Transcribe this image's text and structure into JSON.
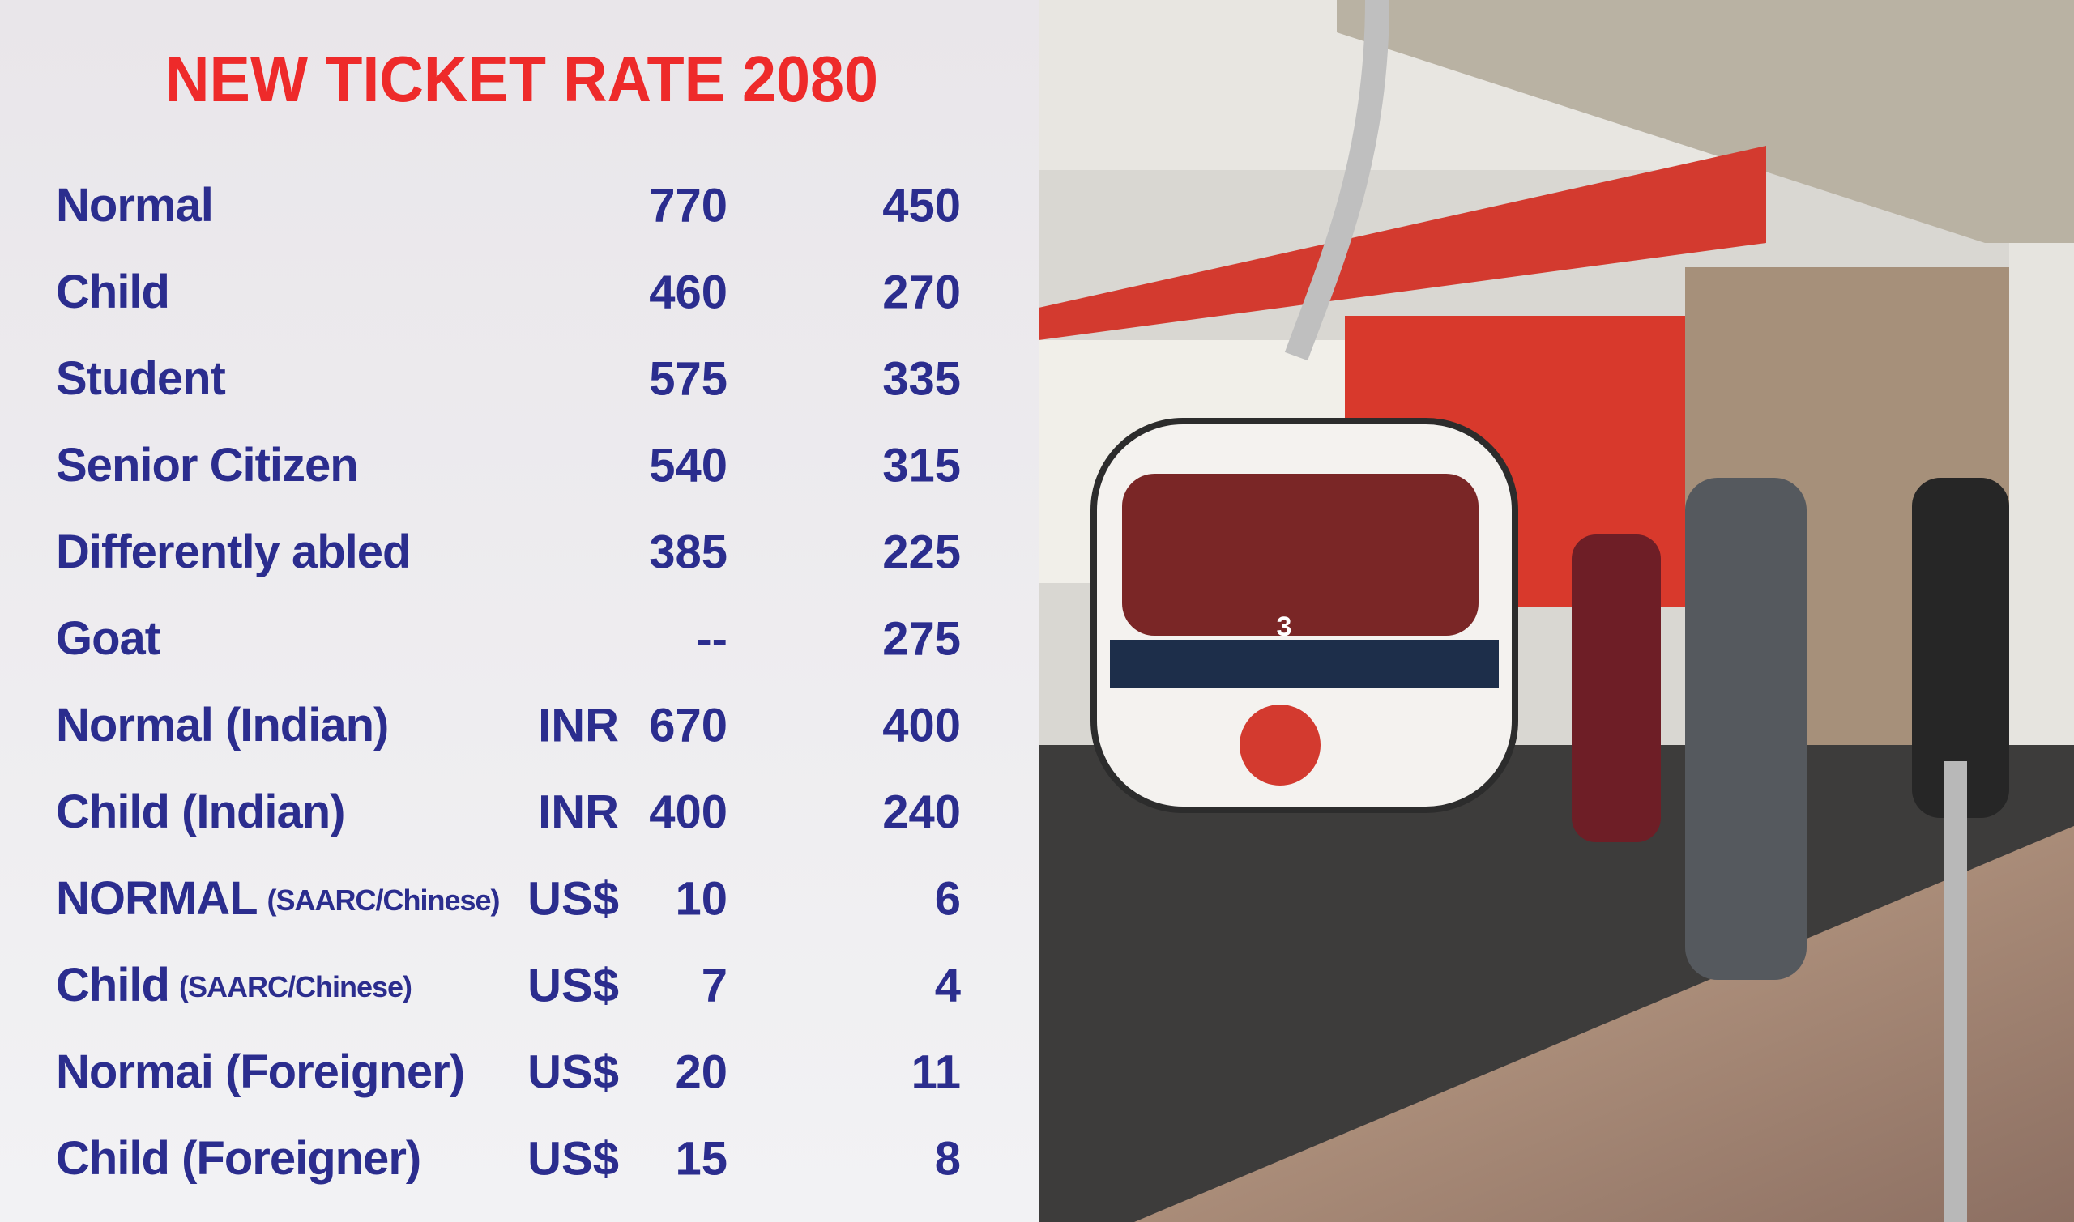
{
  "title": "NEW TICKET RATE 2080",
  "rows": [
    {
      "label": "Normal",
      "col1": 770,
      "col2": 450
    },
    {
      "label": "Child",
      "col1": 460,
      "col2": 270
    },
    {
      "label": "Student",
      "col1": 575,
      "col2": 335
    },
    {
      "label": "Senior Citizen",
      "col1": 540,
      "col2": 315
    },
    {
      "label": "Differently abled",
      "col1": 385,
      "col2": 225
    },
    {
      "label": "Goat",
      "col1": "--",
      "col2": 275
    },
    {
      "label": "Normal (Indian)",
      "currency": "INR",
      "col1": 670,
      "col2": 400
    },
    {
      "label": "Child (Indian)",
      "currency": "INR",
      "col1": 400,
      "col2": 240
    },
    {
      "label": "NORMAL",
      "qualifier": "(SAARC/Chinese)",
      "currency": "US$",
      "col1": 10,
      "col2": 6
    },
    {
      "label": "Child",
      "qualifier": "(SAARC/Chinese)",
      "currency": "US$",
      "col1": 7,
      "col2": 4
    },
    {
      "label": "Normai (Foreigner)",
      "currency": "US$",
      "col1": 20,
      "col2": 11
    },
    {
      "label": "Child (Foreigner)",
      "currency": "US$",
      "col1": 15,
      "col2": 8
    }
  ],
  "photo": {
    "car_number": "3"
  }
}
